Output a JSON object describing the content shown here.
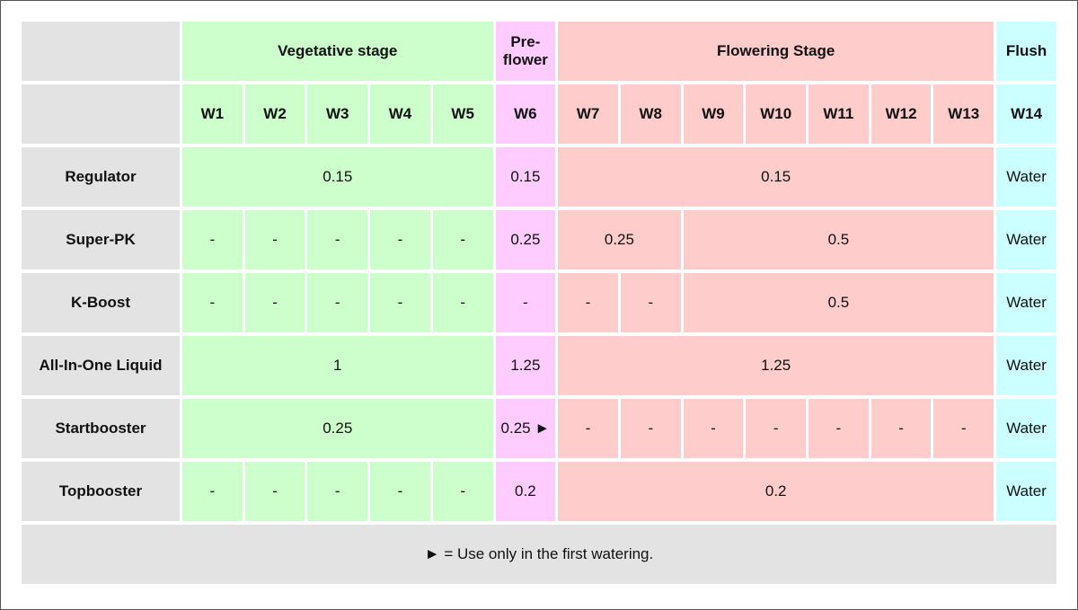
{
  "header": {
    "stages": [
      "Vegetative stage",
      "Pre-flower",
      "Flowering Stage",
      "Flush"
    ],
    "weeks": [
      "W1",
      "W2",
      "W3",
      "W4",
      "W5",
      "W6",
      "W7",
      "W8",
      "W9",
      "W10",
      "W11",
      "W12",
      "W13",
      "W14"
    ]
  },
  "rows": [
    {
      "label": "Regulator",
      "cells": [
        "0.15",
        "0.15",
        "0.15",
        "Water"
      ]
    },
    {
      "label": "Super-PK",
      "cells": [
        "-",
        "-",
        "-",
        "-",
        "-",
        "0.25",
        "0.25",
        "0.5",
        "Water"
      ]
    },
    {
      "label": "K-Boost",
      "cells": [
        "-",
        "-",
        "-",
        "-",
        "-",
        "-",
        "-",
        "-",
        "0.5",
        "Water"
      ]
    },
    {
      "label": "All-In-One Liquid",
      "cells": [
        "1",
        "1.25",
        "1.25",
        "Water"
      ]
    },
    {
      "label": "Startbooster",
      "cells": [
        "0.25",
        "0.25 ►",
        "-",
        "-",
        "-",
        "-",
        "-",
        "-",
        "-",
        "Water"
      ]
    },
    {
      "label": "Topbooster",
      "cells": [
        "-",
        "-",
        "-",
        "-",
        "-",
        "0.2",
        "0.2",
        "Water"
      ]
    }
  ],
  "footnote": "► = Use only in the first watering."
}
